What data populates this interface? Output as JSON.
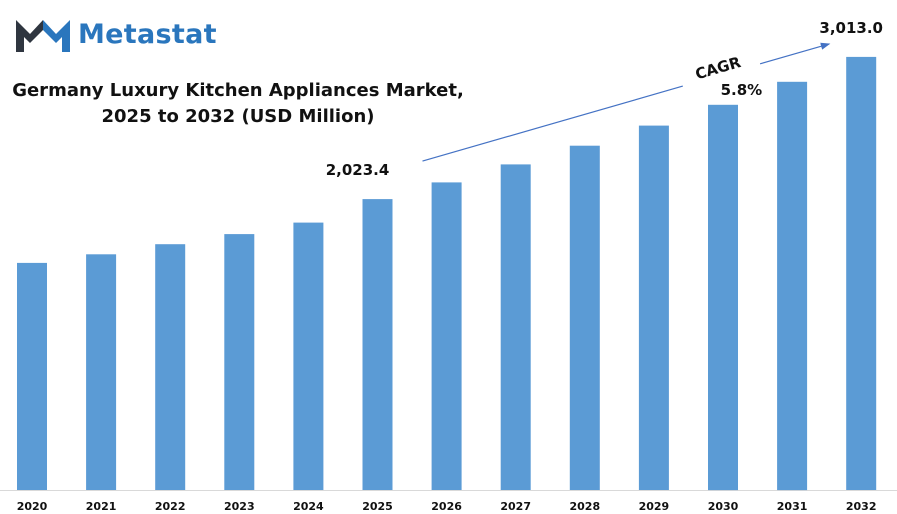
{
  "brand": {
    "name": "Metastat",
    "color": "#2a76bd",
    "dark_color": "#2f3640"
  },
  "chart_data": {
    "type": "bar",
    "title": "Germany Luxury Kitchen Appliances Market, 2025 to 2032 (USD Million)",
    "title_lines": [
      "Germany Luxury Kitchen Appliances Market,",
      "2025 to 2032 (USD Million)"
    ],
    "categories": [
      "2020",
      "2021",
      "2022",
      "2023",
      "2024",
      "2025",
      "2026",
      "2027",
      "2028",
      "2029",
      "2030",
      "2031",
      "2032"
    ],
    "values": [
      1580,
      1640,
      1710,
      1780,
      1860,
      2023.4,
      2140,
      2265,
      2395,
      2535,
      2680,
      2840,
      3013.0
    ],
    "data_labels": [
      {
        "category": "2025",
        "text": "2,023.4"
      },
      {
        "category": "2032",
        "text": "3,013.0"
      }
    ],
    "annotation": {
      "label": "CAGR",
      "value": "5.8%"
    },
    "bar_color": "#5b9bd5",
    "arrow_color": "#4472c4",
    "ylim": [
      0,
      3200
    ],
    "grid": false,
    "legend": "none",
    "xlabel": "",
    "ylabel": ""
  }
}
